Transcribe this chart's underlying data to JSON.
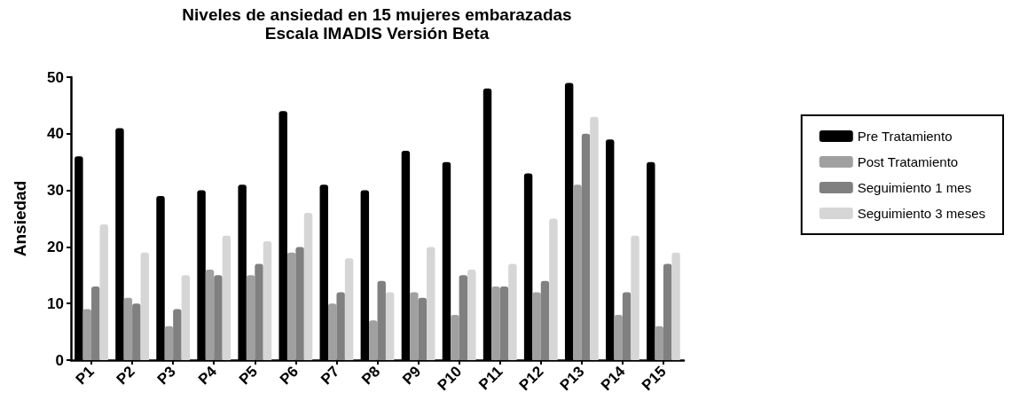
{
  "chart_data": {
    "type": "bar",
    "title": "Niveles de ansiedad en 15 mujeres embarazadas",
    "subtitle": "Escala IMADIS Versión Beta",
    "ylabel": "Ansiedad",
    "categories": [
      "P1",
      "P2",
      "P3",
      "P4",
      "P5",
      "P6",
      "P7",
      "P8",
      "P9",
      "P10",
      "P11",
      "P12",
      "P13",
      "P14",
      "P15"
    ],
    "series": [
      {
        "name": "Pre Tratamiento",
        "color": "#000000",
        "values": [
          36,
          41,
          29,
          30,
          31,
          44,
          31,
          30,
          37,
          35,
          48,
          33,
          49,
          39,
          35
        ]
      },
      {
        "name": "Post Tratamiento",
        "color": "#a0a0a0",
        "values": [
          9,
          11,
          6,
          16,
          15,
          19,
          10,
          7,
          12,
          8,
          13,
          12,
          31,
          8,
          6
        ]
      },
      {
        "name": "Seguimiento 1 mes",
        "color": "#808080",
        "values": [
          13,
          10,
          9,
          15,
          17,
          20,
          12,
          14,
          11,
          15,
          13,
          14,
          40,
          12,
          17
        ]
      },
      {
        "name": "Seguimiento 3 meses",
        "color": "#d6d6d6",
        "values": [
          24,
          19,
          15,
          22,
          21,
          26,
          18,
          12,
          20,
          16,
          17,
          25,
          43,
          22,
          19
        ]
      }
    ],
    "ylim": [
      0,
      50
    ],
    "yticks": [
      0,
      10,
      20,
      30,
      40,
      50
    ],
    "grid": false,
    "legend": "right"
  }
}
